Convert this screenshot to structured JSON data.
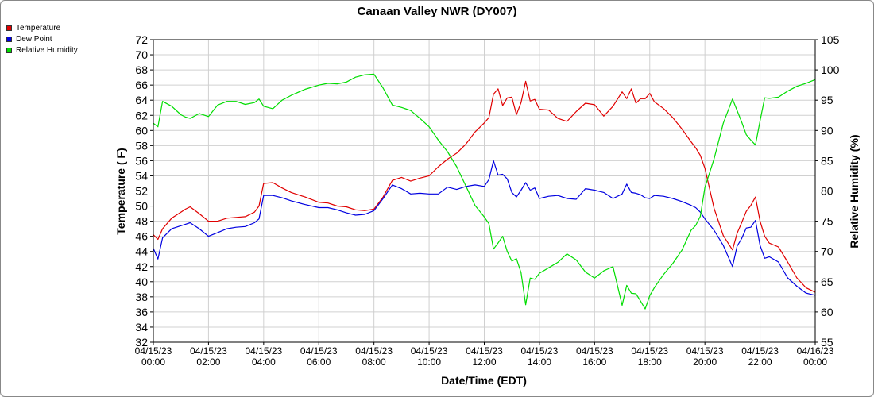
{
  "chart_data": {
    "type": "line",
    "title": "Canaan Valley NWR (DY007)",
    "xlabel": "Date/Time (EDT)",
    "ylabel": "Temperature ( F)",
    "y2label": "Relative Humidity (%)",
    "ylim": [
      32,
      72
    ],
    "y2lim": [
      55,
      105
    ],
    "xlim": [
      "04/15/23 00:00",
      "04/16/23 00:00"
    ],
    "grid": true,
    "legend_position": "top-left",
    "x_ticks": [
      {
        "date": "04/15/23",
        "time": "00:00"
      },
      {
        "date": "04/15/23",
        "time": "02:00"
      },
      {
        "date": "04/15/23",
        "time": "04:00"
      },
      {
        "date": "04/15/23",
        "time": "06:00"
      },
      {
        "date": "04/15/23",
        "time": "08:00"
      },
      {
        "date": "04/15/23",
        "time": "10:00"
      },
      {
        "date": "04/15/23",
        "time": "12:00"
      },
      {
        "date": "04/15/23",
        "time": "14:00"
      },
      {
        "date": "04/15/23",
        "time": "16:00"
      },
      {
        "date": "04/15/23",
        "time": "18:00"
      },
      {
        "date": "04/15/23",
        "time": "20:00"
      },
      {
        "date": "04/15/23",
        "time": "22:00"
      },
      {
        "date": "04/16/23",
        "time": "00:00"
      }
    ],
    "y_ticks": [
      32,
      34,
      36,
      38,
      40,
      42,
      44,
      46,
      48,
      50,
      52,
      54,
      56,
      58,
      60,
      62,
      64,
      66,
      68,
      70,
      72
    ],
    "y2_ticks": [
      55,
      60,
      65,
      70,
      75,
      80,
      85,
      90,
      95,
      100,
      105
    ],
    "series": [
      {
        "name": "Temperature",
        "color": "#e00000",
        "axis": "left",
        "x": [
          "04/15/23 00:00",
          "04/15/23 00:10",
          "04/15/23 00:20",
          "04/15/23 00:40",
          "04/15/23 01:00",
          "04/15/23 01:10",
          "04/15/23 01:20",
          "04/15/23 01:40",
          "04/15/23 02:00",
          "04/15/23 02:20",
          "04/15/23 02:40",
          "04/15/23 03:00",
          "04/15/23 03:20",
          "04/15/23 03:40",
          "04/15/23 03:50",
          "04/15/23 04:00",
          "04/15/23 04:20",
          "04/15/23 04:40",
          "04/15/23 05:00",
          "04/15/23 05:30",
          "04/15/23 06:00",
          "04/15/23 06:20",
          "04/15/23 06:40",
          "04/15/23 07:00",
          "04/15/23 07:20",
          "04/15/23 07:40",
          "04/15/23 08:00",
          "04/15/23 08:20",
          "04/15/23 08:40",
          "04/15/23 09:00",
          "04/15/23 09:20",
          "04/15/23 09:40",
          "04/15/23 10:00",
          "04/15/23 10:20",
          "04/15/23 10:40",
          "04/15/23 11:00",
          "04/15/23 11:20",
          "04/15/23 11:40",
          "04/15/23 12:00",
          "04/15/23 12:10",
          "04/15/23 12:20",
          "04/15/23 12:30",
          "04/15/23 12:40",
          "04/15/23 12:50",
          "04/15/23 13:00",
          "04/15/23 13:10",
          "04/15/23 13:20",
          "04/15/23 13:30",
          "04/15/23 13:40",
          "04/15/23 13:50",
          "04/15/23 14:00",
          "04/15/23 14:20",
          "04/15/23 14:40",
          "04/15/23 15:00",
          "04/15/23 15:20",
          "04/15/23 15:40",
          "04/15/23 16:00",
          "04/15/23 16:20",
          "04/15/23 16:40",
          "04/15/23 17:00",
          "04/15/23 17:10",
          "04/15/23 17:20",
          "04/15/23 17:30",
          "04/15/23 17:40",
          "04/15/23 17:50",
          "04/15/23 18:00",
          "04/15/23 18:10",
          "04/15/23 18:30",
          "04/15/23 18:50",
          "04/15/23 19:10",
          "04/15/23 19:30",
          "04/15/23 19:40",
          "04/15/23 19:50",
          "04/15/23 20:00",
          "04/15/23 20:20",
          "04/15/23 20:40",
          "04/15/23 21:00",
          "04/15/23 21:10",
          "04/15/23 21:20",
          "04/15/23 21:30",
          "04/15/23 21:40",
          "04/15/23 21:50",
          "04/15/23 22:00",
          "04/15/23 22:10",
          "04/15/23 22:20",
          "04/15/23 22:40",
          "04/15/23 23:00",
          "04/15/23 23:20",
          "04/15/23 23:40",
          "04/16/23 00:00"
        ],
        "y": [
          46.2,
          45.6,
          47.0,
          48.4,
          49.2,
          49.6,
          49.9,
          49.0,
          48.0,
          48.0,
          48.4,
          48.5,
          48.6,
          49.2,
          50.0,
          53.0,
          53.1,
          52.4,
          51.8,
          51.2,
          50.5,
          50.4,
          50.0,
          49.9,
          49.5,
          49.4,
          49.6,
          51.2,
          53.4,
          53.8,
          53.3,
          53.7,
          54.0,
          55.2,
          56.2,
          57.0,
          58.2,
          59.8,
          61.0,
          61.7,
          64.8,
          65.5,
          63.3,
          64.3,
          64.4,
          62.1,
          63.7,
          66.5,
          63.9,
          64.1,
          62.8,
          62.7,
          61.6,
          61.2,
          62.5,
          63.6,
          63.4,
          61.9,
          63.2,
          65.1,
          64.2,
          65.5,
          63.6,
          64.2,
          64.2,
          64.9,
          63.8,
          62.9,
          61.7,
          60.2,
          58.5,
          57.7,
          56.7,
          55.0,
          49.7,
          46.1,
          44.2,
          46.4,
          47.8,
          49.3,
          50.1,
          51.2,
          48.0,
          46.0,
          45.1,
          44.6,
          42.6,
          40.5,
          39.2,
          38.6
        ]
      },
      {
        "name": "Dew Point",
        "color": "#0000e0",
        "axis": "left",
        "x": [
          "04/15/23 00:00",
          "04/15/23 00:10",
          "04/15/23 00:20",
          "04/15/23 00:40",
          "04/15/23 01:00",
          "04/15/23 01:10",
          "04/15/23 01:20",
          "04/15/23 01:40",
          "04/15/23 02:00",
          "04/15/23 02:20",
          "04/15/23 02:40",
          "04/15/23 03:00",
          "04/15/23 03:20",
          "04/15/23 03:40",
          "04/15/23 03:50",
          "04/15/23 04:00",
          "04/15/23 04:20",
          "04/15/23 04:40",
          "04/15/23 05:00",
          "04/15/23 05:30",
          "04/15/23 06:00",
          "04/15/23 06:20",
          "04/15/23 06:40",
          "04/15/23 07:00",
          "04/15/23 07:20",
          "04/15/23 07:40",
          "04/15/23 08:00",
          "04/15/23 08:20",
          "04/15/23 08:40",
          "04/15/23 09:00",
          "04/15/23 09:20",
          "04/15/23 09:40",
          "04/15/23 10:00",
          "04/15/23 10:20",
          "04/15/23 10:40",
          "04/15/23 11:00",
          "04/15/23 11:20",
          "04/15/23 11:40",
          "04/15/23 12:00",
          "04/15/23 12:10",
          "04/15/23 12:20",
          "04/15/23 12:30",
          "04/15/23 12:40",
          "04/15/23 12:50",
          "04/15/23 13:00",
          "04/15/23 13:10",
          "04/15/23 13:20",
          "04/15/23 13:30",
          "04/15/23 13:40",
          "04/15/23 13:50",
          "04/15/23 14:00",
          "04/15/23 14:20",
          "04/15/23 14:40",
          "04/15/23 15:00",
          "04/15/23 15:20",
          "04/15/23 15:40",
          "04/15/23 16:00",
          "04/15/23 16:20",
          "04/15/23 16:40",
          "04/15/23 17:00",
          "04/15/23 17:10",
          "04/15/23 17:20",
          "04/15/23 17:30",
          "04/15/23 17:40",
          "04/15/23 17:50",
          "04/15/23 18:00",
          "04/15/23 18:10",
          "04/15/23 18:30",
          "04/15/23 18:50",
          "04/15/23 19:10",
          "04/15/23 19:30",
          "04/15/23 19:40",
          "04/15/23 19:50",
          "04/15/23 20:00",
          "04/15/23 20:20",
          "04/15/23 20:40",
          "04/15/23 21:00",
          "04/15/23 21:10",
          "04/15/23 21:20",
          "04/15/23 21:30",
          "04/15/23 21:40",
          "04/15/23 21:50",
          "04/15/23 22:00",
          "04/15/23 22:10",
          "04/15/23 22:20",
          "04/15/23 22:40",
          "04/15/23 23:00",
          "04/15/23 23:20",
          "04/15/23 23:40",
          "04/16/23 00:00"
        ],
        "y": [
          44.4,
          43.0,
          45.8,
          47.0,
          47.4,
          47.6,
          47.8,
          47.0,
          46.0,
          46.5,
          47.0,
          47.2,
          47.3,
          47.8,
          48.3,
          51.4,
          51.4,
          51.1,
          50.7,
          50.2,
          49.8,
          49.8,
          49.5,
          49.1,
          48.8,
          48.9,
          49.4,
          51.0,
          52.8,
          52.3,
          51.6,
          51.7,
          51.6,
          51.6,
          52.5,
          52.2,
          52.6,
          52.8,
          52.6,
          53.5,
          56.0,
          54.1,
          54.2,
          53.6,
          51.8,
          51.2,
          52.1,
          53.1,
          52.1,
          52.4,
          51.0,
          51.3,
          51.4,
          51.0,
          50.9,
          52.3,
          52.1,
          51.8,
          51.0,
          51.6,
          52.9,
          51.8,
          51.7,
          51.5,
          51.1,
          51.0,
          51.4,
          51.3,
          51.0,
          50.6,
          50.1,
          49.8,
          49.2,
          48.3,
          46.8,
          44.8,
          42.0,
          44.7,
          45.7,
          47.1,
          47.2,
          48.1,
          44.8,
          43.1,
          43.3,
          42.6,
          40.5,
          39.4,
          38.5,
          38.2
        ]
      },
      {
        "name": "Relative Humidity",
        "color": "#00dd00",
        "axis": "right",
        "x": [
          "04/15/23 00:00",
          "04/15/23 00:10",
          "04/15/23 00:20",
          "04/15/23 00:40",
          "04/15/23 01:00",
          "04/15/23 01:10",
          "04/15/23 01:20",
          "04/15/23 01:40",
          "04/15/23 02:00",
          "04/15/23 02:20",
          "04/15/23 02:40",
          "04/15/23 03:00",
          "04/15/23 03:20",
          "04/15/23 03:40",
          "04/15/23 03:50",
          "04/15/23 04:00",
          "04/15/23 04:20",
          "04/15/23 04:40",
          "04/15/23 05:00",
          "04/15/23 05:30",
          "04/15/23 06:00",
          "04/15/23 06:20",
          "04/15/23 06:40",
          "04/15/23 07:00",
          "04/15/23 07:20",
          "04/15/23 07:40",
          "04/15/23 08:00",
          "04/15/23 08:20",
          "04/15/23 08:40",
          "04/15/23 09:00",
          "04/15/23 09:20",
          "04/15/23 09:40",
          "04/15/23 10:00",
          "04/15/23 10:20",
          "04/15/23 10:40",
          "04/15/23 11:00",
          "04/15/23 11:20",
          "04/15/23 11:40",
          "04/15/23 12:00",
          "04/15/23 12:10",
          "04/15/23 12:20",
          "04/15/23 12:30",
          "04/15/23 12:40",
          "04/15/23 12:50",
          "04/15/23 13:00",
          "04/15/23 13:10",
          "04/15/23 13:20",
          "04/15/23 13:30",
          "04/15/23 13:40",
          "04/15/23 13:50",
          "04/15/23 14:00",
          "04/15/23 14:20",
          "04/15/23 14:40",
          "04/15/23 15:00",
          "04/15/23 15:20",
          "04/15/23 15:40",
          "04/15/23 16:00",
          "04/15/23 16:20",
          "04/15/23 16:40",
          "04/15/23 17:00",
          "04/15/23 17:10",
          "04/15/23 17:20",
          "04/15/23 17:30",
          "04/15/23 17:40",
          "04/15/23 17:50",
          "04/15/23 18:00",
          "04/15/23 18:10",
          "04/15/23 18:30",
          "04/15/23 18:50",
          "04/15/23 19:10",
          "04/15/23 19:30",
          "04/15/23 19:40",
          "04/15/23 19:50",
          "04/15/23 20:00",
          "04/15/23 20:20",
          "04/15/23 20:40",
          "04/15/23 21:00",
          "04/15/23 21:10",
          "04/15/23 21:20",
          "04/15/23 21:30",
          "04/15/23 21:40",
          "04/15/23 21:50",
          "04/15/23 22:00",
          "04/15/23 22:10",
          "04/15/23 22:20",
          "04/15/23 22:40",
          "04/15/23 23:00",
          "04/15/23 23:20",
          "04/15/23 23:40",
          "04/16/23 00:00"
        ],
        "y": [
          91.2,
          90.6,
          94.8,
          94.0,
          92.6,
          92.2,
          92.0,
          92.8,
          92.3,
          94.2,
          94.8,
          94.8,
          94.3,
          94.6,
          95.2,
          94.0,
          93.6,
          95.0,
          95.8,
          96.8,
          97.5,
          97.8,
          97.7,
          98.0,
          98.8,
          99.2,
          99.3,
          97.0,
          94.2,
          93.8,
          93.3,
          92.0,
          90.6,
          88.4,
          86.5,
          84.0,
          80.8,
          77.6,
          75.7,
          74.6,
          70.4,
          71.4,
          72.5,
          70.0,
          68.4,
          68.8,
          66.5,
          61.2,
          65.6,
          65.4,
          66.4,
          67.3,
          68.2,
          69.6,
          68.6,
          66.6,
          65.6,
          66.8,
          67.5,
          61.1,
          64.4,
          63.1,
          63.0,
          61.8,
          60.5,
          62.7,
          64.0,
          66.2,
          68.0,
          70.2,
          73.5,
          74.3,
          75.8,
          80.6,
          85.3,
          91.2,
          95.2,
          93.3,
          91.4,
          89.3,
          88.4,
          87.6,
          91.6,
          95.4,
          95.3,
          95.5,
          96.5,
          97.3,
          97.8,
          98.4
        ]
      }
    ]
  }
}
